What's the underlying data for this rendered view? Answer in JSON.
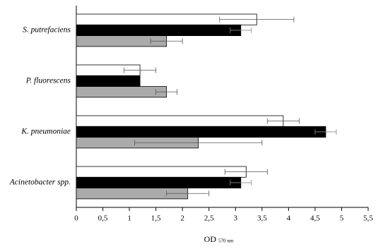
{
  "chart_data": {
    "type": "hbar",
    "categories": [
      "S. putrefaciens",
      "P. fluorescens",
      "K. pneumoniae",
      "Acinetobacter spp."
    ],
    "series": [
      {
        "color": "#ffffff",
        "values": [
          3.4,
          1.2,
          3.9,
          3.2
        ],
        "errors": [
          0.7,
          0.3,
          0.3,
          0.4
        ]
      },
      {
        "color": "#000000",
        "values": [
          3.1,
          1.2,
          4.7,
          3.1
        ],
        "errors": [
          0.2,
          null,
          0.2,
          0.2
        ]
      },
      {
        "color": "#aaaaaa",
        "values": [
          1.7,
          1.7,
          2.3,
          2.1
        ],
        "errors": [
          0.3,
          0.2,
          1.2,
          0.4
        ]
      }
    ],
    "xlim": [
      0,
      5.5
    ],
    "xticks": [
      0,
      {
        "value": 0.5,
        "label": "0,5"
      },
      1,
      {
        "value": 1.5,
        "label": "1,5"
      },
      2,
      {
        "value": 2.5,
        "label": "2,5"
      },
      3,
      {
        "value": 3.5,
        "label": "3,5"
      },
      4,
      {
        "value": 4.5,
        "label": "4,5"
      },
      5,
      {
        "value": 5.5,
        "label": "5,5"
      }
    ],
    "x_label": "OD",
    "x_label_sub": "570 nm"
  }
}
